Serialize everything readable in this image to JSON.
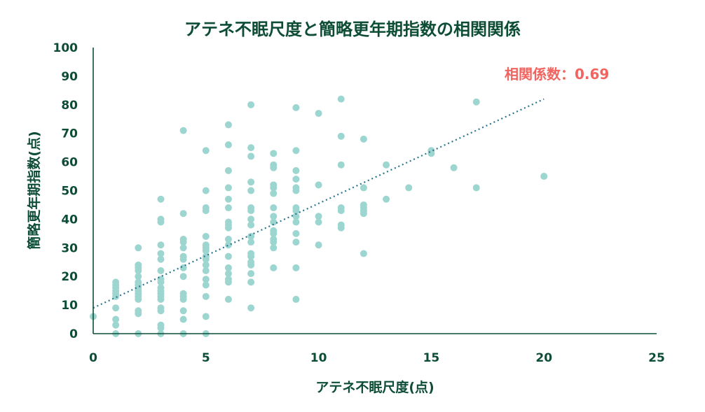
{
  "chart_data": {
    "type": "scatter",
    "title": "アテネ不眠尺度と簡略更年期指数の相関関係",
    "xlabel": "アテネ不眠尺度(点)",
    "ylabel": "簡略更年期指数(点)",
    "xlim": [
      0,
      25
    ],
    "ylim": [
      0,
      100
    ],
    "xticks": [
      "0",
      "5",
      "10",
      "15",
      "20",
      "25"
    ],
    "yticks": [
      "0",
      "10",
      "20",
      "30",
      "40",
      "50",
      "60",
      "70",
      "80",
      "90",
      "100"
    ],
    "annotation": "相関係数：0.69",
    "colors": {
      "points": "#9dd6d0",
      "trendline": "#2b7590",
      "annotation": "#f2645f",
      "text": "#0d4d36"
    },
    "trendline": {
      "x": [
        0,
        20
      ],
      "y": [
        9,
        82
      ]
    },
    "points": [
      [
        0,
        6
      ],
      [
        1,
        0
      ],
      [
        1,
        3
      ],
      [
        1,
        5
      ],
      [
        1,
        9
      ],
      [
        1,
        13
      ],
      [
        1,
        14
      ],
      [
        1,
        15
      ],
      [
        1,
        16
      ],
      [
        1,
        17
      ],
      [
        1,
        18
      ],
      [
        2,
        0
      ],
      [
        2,
        7
      ],
      [
        2,
        8
      ],
      [
        2,
        12
      ],
      [
        2,
        13
      ],
      [
        2,
        14
      ],
      [
        2,
        15
      ],
      [
        2,
        16
      ],
      [
        2,
        17
      ],
      [
        2,
        18
      ],
      [
        2,
        20
      ],
      [
        2,
        22
      ],
      [
        2,
        23
      ],
      [
        2,
        24
      ],
      [
        2,
        30
      ],
      [
        3,
        0
      ],
      [
        3,
        2
      ],
      [
        3,
        3
      ],
      [
        3,
        8
      ],
      [
        3,
        9
      ],
      [
        3,
        12
      ],
      [
        3,
        13
      ],
      [
        3,
        14
      ],
      [
        3,
        15
      ],
      [
        3,
        16
      ],
      [
        3,
        18
      ],
      [
        3,
        19
      ],
      [
        3,
        22
      ],
      [
        3,
        26
      ],
      [
        3,
        28
      ],
      [
        3,
        31
      ],
      [
        3,
        39
      ],
      [
        3,
        40
      ],
      [
        3,
        47
      ],
      [
        4,
        0
      ],
      [
        4,
        5
      ],
      [
        4,
        8
      ],
      [
        4,
        12
      ],
      [
        4,
        13
      ],
      [
        4,
        14
      ],
      [
        4,
        20
      ],
      [
        4,
        23
      ],
      [
        4,
        26
      ],
      [
        4,
        27
      ],
      [
        4,
        30
      ],
      [
        4,
        32
      ],
      [
        4,
        33
      ],
      [
        4,
        42
      ],
      [
        4,
        71
      ],
      [
        5,
        0
      ],
      [
        5,
        6
      ],
      [
        5,
        13
      ],
      [
        5,
        17
      ],
      [
        5,
        19
      ],
      [
        5,
        22
      ],
      [
        5,
        24
      ],
      [
        5,
        26
      ],
      [
        5,
        27
      ],
      [
        5,
        29
      ],
      [
        5,
        30
      ],
      [
        5,
        31
      ],
      [
        5,
        34
      ],
      [
        5,
        43
      ],
      [
        5,
        44
      ],
      [
        5,
        50
      ],
      [
        5,
        64
      ],
      [
        6,
        12
      ],
      [
        6,
        18
      ],
      [
        6,
        19
      ],
      [
        6,
        21
      ],
      [
        6,
        23
      ],
      [
        6,
        27
      ],
      [
        6,
        31
      ],
      [
        6,
        33
      ],
      [
        6,
        37
      ],
      [
        6,
        38
      ],
      [
        6,
        39
      ],
      [
        6,
        44
      ],
      [
        6,
        47
      ],
      [
        6,
        51
      ],
      [
        6,
        57
      ],
      [
        6,
        66
      ],
      [
        6,
        73
      ],
      [
        7,
        9
      ],
      [
        7,
        18
      ],
      [
        7,
        21
      ],
      [
        7,
        24
      ],
      [
        7,
        25
      ],
      [
        7,
        27
      ],
      [
        7,
        28
      ],
      [
        7,
        32
      ],
      [
        7,
        34
      ],
      [
        7,
        38
      ],
      [
        7,
        40
      ],
      [
        7,
        43
      ],
      [
        7,
        44
      ],
      [
        7,
        50
      ],
      [
        7,
        53
      ],
      [
        7,
        62
      ],
      [
        7,
        65
      ],
      [
        7,
        80
      ],
      [
        8,
        23
      ],
      [
        8,
        30
      ],
      [
        8,
        32
      ],
      [
        8,
        33
      ],
      [
        8,
        35
      ],
      [
        8,
        36
      ],
      [
        8,
        39
      ],
      [
        8,
        41
      ],
      [
        8,
        44
      ],
      [
        8,
        49
      ],
      [
        8,
        51
      ],
      [
        8,
        52
      ],
      [
        8,
        58
      ],
      [
        8,
        59
      ],
      [
        8,
        63
      ],
      [
        9,
        12
      ],
      [
        9,
        23
      ],
      [
        9,
        32
      ],
      [
        9,
        35
      ],
      [
        9,
        39
      ],
      [
        9,
        41
      ],
      [
        9,
        43
      ],
      [
        9,
        44
      ],
      [
        9,
        50
      ],
      [
        9,
        51
      ],
      [
        9,
        54
      ],
      [
        9,
        57
      ],
      [
        9,
        64
      ],
      [
        9,
        79
      ],
      [
        10,
        31
      ],
      [
        10,
        39
      ],
      [
        10,
        41
      ],
      [
        10,
        52
      ],
      [
        10,
        77
      ],
      [
        11,
        37
      ],
      [
        11,
        38
      ],
      [
        11,
        43
      ],
      [
        11,
        44
      ],
      [
        11,
        59
      ],
      [
        11,
        69
      ],
      [
        11,
        82
      ],
      [
        12,
        28
      ],
      [
        12,
        42
      ],
      [
        12,
        43
      ],
      [
        12,
        44
      ],
      [
        12,
        45
      ],
      [
        12,
        51
      ],
      [
        12,
        68
      ],
      [
        13,
        47
      ],
      [
        13,
        59
      ],
      [
        14,
        51
      ],
      [
        15,
        63
      ],
      [
        15,
        64
      ],
      [
        16,
        58
      ],
      [
        17,
        51
      ],
      [
        17,
        81
      ],
      [
        20,
        55
      ]
    ]
  }
}
